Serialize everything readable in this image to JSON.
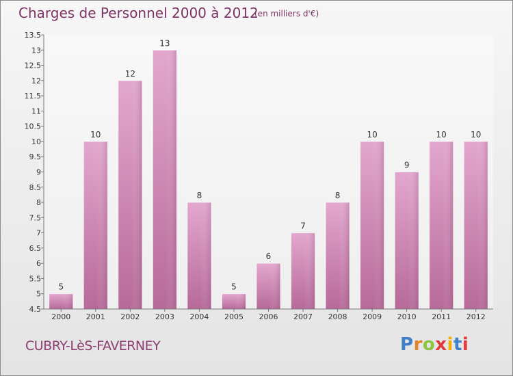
{
  "header": {
    "title": "Charges de Personnel 2000 à 2012",
    "subtitle": "(en milliers d'€)"
  },
  "footer": {
    "commune": "CUBRY-LèS-FAVERNEY",
    "logo": "Proxiti",
    "logo_colors": [
      "#3f7fc9",
      "#e0862a",
      "#8cc63f",
      "#e23a3a",
      "#f2b000",
      "#3f7fc9",
      "#e23a3a"
    ]
  },
  "chart_data": {
    "type": "bar",
    "title": "Charges de Personnel 2000 à 2012",
    "subtitle": "(en milliers d'€)",
    "xlabel": "",
    "ylabel": "",
    "categories": [
      "2000",
      "2001",
      "2002",
      "2003",
      "2004",
      "2005",
      "2006",
      "2007",
      "2008",
      "2009",
      "2010",
      "2011",
      "2012"
    ],
    "values": [
      5,
      10,
      12,
      13,
      8,
      5,
      6,
      7,
      8,
      10,
      9,
      10,
      10
    ],
    "ylim": [
      4.5,
      13.5
    ],
    "yticks": [
      "4.5",
      "5",
      "5.5",
      "6",
      "6.5",
      "7",
      "7.5",
      "8",
      "8.5",
      "9",
      "9.5",
      "10",
      "10.5",
      "11",
      "11.5",
      "12",
      "12.5",
      "13",
      "13.5"
    ],
    "bar_color": "#d98bbf",
    "grid": false,
    "legend": "none"
  }
}
